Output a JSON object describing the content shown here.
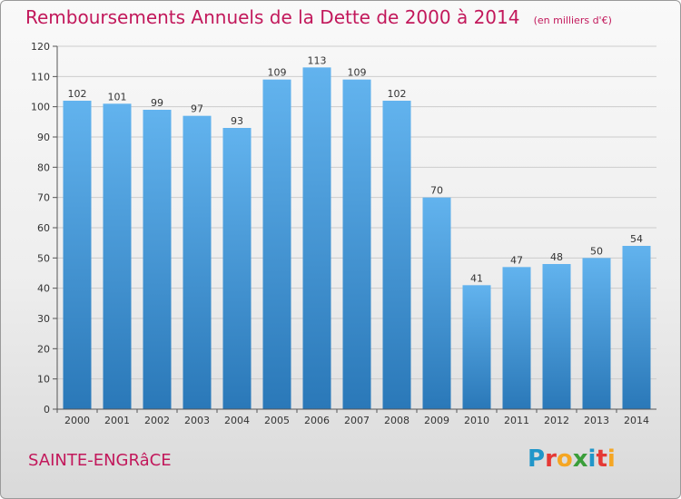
{
  "title": "Remboursements Annuels de la Dette de 2000 à 2014",
  "subtitle": "(en milliers d'€)",
  "commune": "SAINTE-ENGRâCE",
  "logo": {
    "letters": [
      "P",
      "r",
      "o",
      "x",
      "i",
      "t",
      "i"
    ],
    "colors": [
      "#2196c9",
      "#e53935",
      "#f5a623",
      "#3a9e3a",
      "#2196c9",
      "#e53935",
      "#f5a623"
    ]
  },
  "colors": {
    "title": "#c2185b",
    "bar_top": "#62b3ee",
    "bar_bottom": "#2a78b8"
  },
  "chart_data": {
    "type": "bar",
    "categories": [
      "2000",
      "2001",
      "2002",
      "2003",
      "2004",
      "2005",
      "2006",
      "2007",
      "2008",
      "2009",
      "2010",
      "2011",
      "2012",
      "2013",
      "2014"
    ],
    "values": [
      102,
      101,
      99,
      97,
      93,
      109,
      113,
      109,
      102,
      70,
      41,
      47,
      48,
      50,
      54
    ],
    "ylim": [
      0,
      120
    ],
    "yticks": [
      0,
      10,
      20,
      30,
      40,
      50,
      60,
      70,
      80,
      90,
      100,
      110,
      120
    ],
    "grid": true
  }
}
